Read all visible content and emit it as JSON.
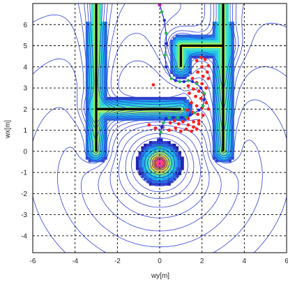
{
  "chart_data": {
    "type": "contour",
    "title": "",
    "xlabel": "wy[m]",
    "ylabel": "wx[m]",
    "xlim": [
      -6,
      6
    ],
    "ylim": [
      -4.8,
      7
    ],
    "x_ticks": [
      "-6",
      "-4",
      "-2",
      "0",
      "2",
      "4",
      "6"
    ],
    "y_ticks": [
      "-4",
      "-3",
      "-2",
      "-1",
      "0",
      "1",
      "2",
      "3",
      "4",
      "5",
      "6"
    ],
    "grid": true,
    "grid_style": "dashed",
    "walls": [
      {
        "x": [
          -3,
          -3
        ],
        "y": [
          7,
          0
        ]
      },
      {
        "x": [
          -3,
          1
        ],
        "y": [
          2,
          2
        ]
      },
      {
        "x": [
          3,
          3
        ],
        "y": [
          7,
          0
        ]
      },
      {
        "x": [
          1,
          3
        ],
        "y": [
          5,
          5
        ]
      },
      {
        "x": [
          1,
          1
        ],
        "y": [
          5,
          4
        ]
      }
    ],
    "attractor": {
      "x": 0,
      "y": -0.55
    },
    "path": {
      "x": [
        0.0,
        0.1,
        0.22,
        0.3,
        0.32,
        0.25,
        0.3,
        0.55,
        0.75,
        0.95,
        1.15,
        1.35,
        1.55,
        1.75,
        1.95,
        2.1,
        2.1,
        2.05,
        1.85,
        1.65,
        1.45,
        1.25,
        1.05,
        0.85,
        0.65,
        0.45,
        0.3,
        0.18,
        0.1,
        0.05,
        0.0,
        0.0
      ],
      "y": [
        7.0,
        6.6,
        6.2,
        5.6,
        5.1,
        4.55,
        4.0,
        3.45,
        3.35,
        3.3,
        3.3,
        3.35,
        3.3,
        3.2,
        3.0,
        2.75,
        2.45,
        2.15,
        1.95,
        1.82,
        1.72,
        1.62,
        1.6,
        1.6,
        1.6,
        1.6,
        1.55,
        1.35,
        1.15,
        0.9,
        0.55,
        0.2
      ]
    },
    "red_points": {
      "x": [
        1.75,
        1.95,
        2.15,
        2.3,
        2.0,
        2.25,
        1.8,
        2.05,
        2.3,
        1.55,
        1.75,
        2.0,
        2.2,
        1.35,
        1.6,
        1.85,
        2.1,
        1.4,
        1.7,
        1.95,
        2.2,
        1.5,
        1.75,
        2.0,
        2.3,
        1.3,
        1.55,
        1.8,
        2.05,
        1.35,
        1.6,
        1.85,
        0.5,
        0.7,
        0.9,
        1.1,
        1.35,
        1.6,
        1.85,
        -0.5,
        -0.2,
        0.15,
        0.45,
        0.75,
        1.0,
        1.25,
        1.5,
        1.75,
        -0.3
      ],
      "y": [
        4.3,
        4.45,
        4.35,
        4.05,
        4.0,
        3.75,
        3.75,
        3.55,
        3.45,
        3.45,
        3.25,
        3.2,
        3.0,
        3.1,
        2.95,
        2.85,
        2.7,
        2.75,
        2.6,
        2.5,
        2.3,
        2.3,
        2.15,
        2.05,
        2.0,
        1.95,
        1.85,
        1.75,
        1.7,
        1.55,
        1.4,
        1.45,
        1.35,
        1.45,
        1.3,
        1.4,
        1.25,
        1.15,
        1.3,
        1.25,
        1.1,
        1.15,
        1.0,
        1.1,
        0.95,
        1.05,
        0.95,
        1.05,
        3.15
      ]
    },
    "colormap": [
      "#1f1a9e",
      "#2f41c9",
      "#2c6fe0",
      "#1fa0ec",
      "#21c6e6",
      "#3fe0c9",
      "#9aee62",
      "#eef43a",
      "#ffb11e",
      "#ff5a2e",
      "#ff3aa6",
      "#c640ff"
    ]
  }
}
